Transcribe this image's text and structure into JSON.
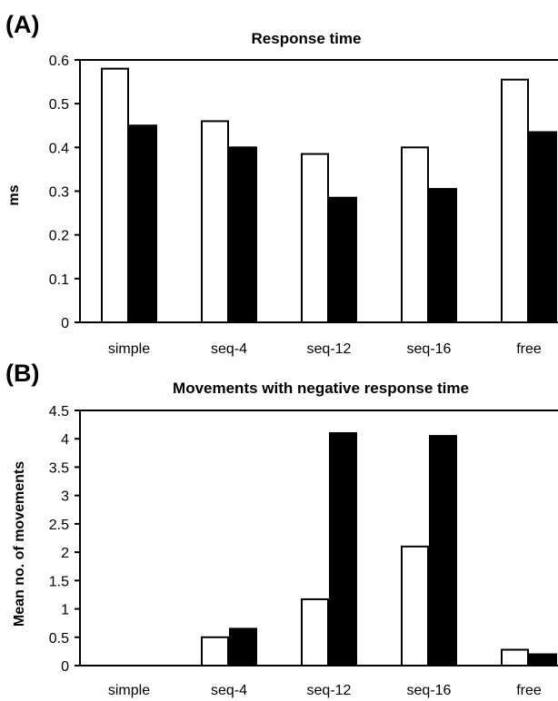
{
  "chart_data": [
    {
      "panel_label": "(A)",
      "type": "bar",
      "title": "Response time",
      "xlabel": "",
      "ylabel": "ms",
      "ylim": [
        0,
        0.6
      ],
      "yticks": [
        "0",
        "0.1",
        "0.2",
        "0.3",
        "0.4",
        "0.5",
        "0.6"
      ],
      "categories": [
        "simple",
        "seq-4",
        "seq-12",
        "seq-16",
        "free"
      ],
      "series": [
        {
          "values": [
            0.58,
            0.46,
            0.385,
            0.4,
            0.555
          ],
          "color": "#ffffff"
        },
        {
          "values": [
            0.45,
            0.4,
            0.285,
            0.305,
            0.435
          ],
          "color": "#000000"
        }
      ],
      "grid": false
    },
    {
      "panel_label": "(B)",
      "type": "bar",
      "title": "Movements with negative response time",
      "xlabel": "",
      "ylabel": "Mean no. of movements",
      "ylim": [
        0,
        4.5
      ],
      "yticks": [
        "0",
        "0.5",
        "1",
        "1.5",
        "2",
        "2.5",
        "3",
        "3.5",
        "4",
        "4.5"
      ],
      "categories": [
        "simple",
        "seq-4",
        "seq-12",
        "seq-16",
        "free"
      ],
      "series": [
        {
          "values": [
            0,
            0.5,
            1.17,
            2.1,
            0.28
          ],
          "color": "#ffffff"
        },
        {
          "values": [
            0,
            0.65,
            4.1,
            4.05,
            0.2
          ],
          "color": "#000000"
        }
      ],
      "grid": false
    }
  ]
}
